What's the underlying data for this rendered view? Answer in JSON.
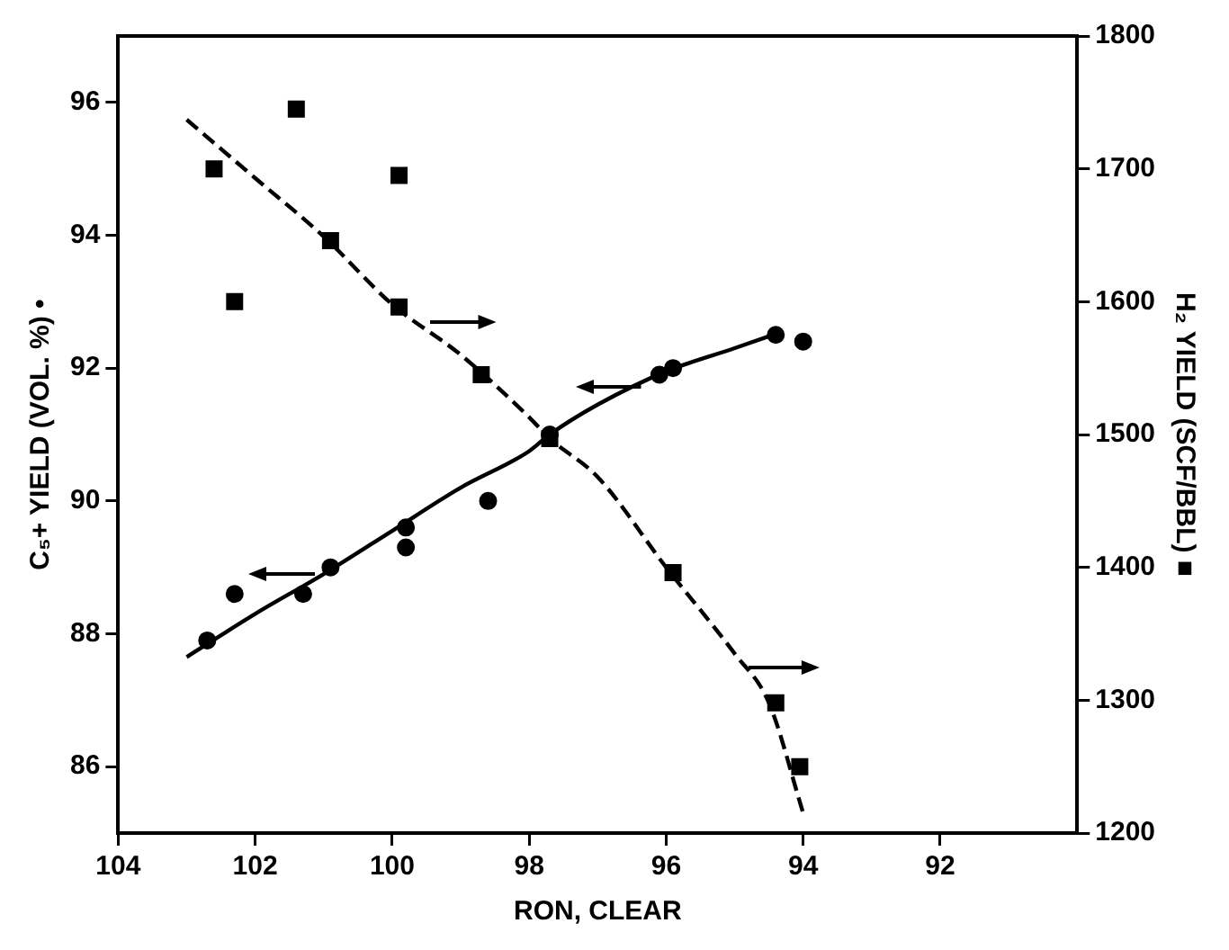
{
  "chart_data": {
    "type": "scatter",
    "xlabel": "RON, CLEAR",
    "ylabel": "C₅+ YIELD (VOL. %) •",
    "y2label": "H₂ YIELD (SCF/BBL) ■",
    "xlim": [
      104,
      90
    ],
    "xticks": [
      104,
      102,
      100,
      98,
      96,
      94,
      92
    ],
    "ylim": [
      85,
      97
    ],
    "yticks": [
      86,
      88,
      90,
      92,
      94,
      96
    ],
    "y2lim": [
      1200,
      1800
    ],
    "y2ticks": [
      1200,
      1300,
      1400,
      1500,
      1600,
      1700,
      1800
    ],
    "grid": false,
    "legend": false,
    "series": [
      {
        "type": "scatter",
        "marker": "circle",
        "color": "#000000",
        "x": [
          102.7,
          102.3,
          101.3,
          100.9,
          99.8,
          99.8,
          98.6,
          97.7,
          96.1,
          95.9,
          94.4,
          94.0
        ],
        "values": [
          87.9,
          88.6,
          88.6,
          89.0,
          89.6,
          89.3,
          90.0,
          91.0,
          91.9,
          92.0,
          92.5,
          92.4
        ]
      },
      {
        "type": "scatter",
        "marker": "square",
        "color": "#000000",
        "axis": "y2",
        "x": [
          102.6,
          101.4,
          102.3,
          99.9,
          100.9,
          99.9,
          98.7,
          97.7,
          95.9,
          94.4,
          94.05
        ],
        "values": [
          1700,
          1745,
          1600,
          1695,
          1646,
          1596,
          1545,
          1497,
          1396,
          1298,
          1250
        ]
      },
      {
        "type": "line",
        "marker": "none",
        "line_style": "solid",
        "color": "#000000",
        "x": [
          103.0,
          102,
          101,
          100,
          99,
          98,
          97.7,
          97,
          96,
          95,
          94.3
        ],
        "values": [
          87.65,
          88.3,
          88.9,
          89.55,
          90.2,
          90.75,
          91.0,
          91.45,
          91.95,
          92.3,
          92.55
        ]
      },
      {
        "type": "line",
        "marker": "none",
        "line_style": "dashed",
        "color": "#000000",
        "axis": "y2",
        "x": [
          103.0,
          102,
          101,
          100,
          99,
          98,
          97.7,
          97,
          96,
          95,
          94.5,
          94.0
        ],
        "values": [
          1737,
          1693,
          1649,
          1598,
          1560,
          1513,
          1497,
          1468,
          1400,
          1335,
          1298,
          1215
        ]
      }
    ]
  }
}
